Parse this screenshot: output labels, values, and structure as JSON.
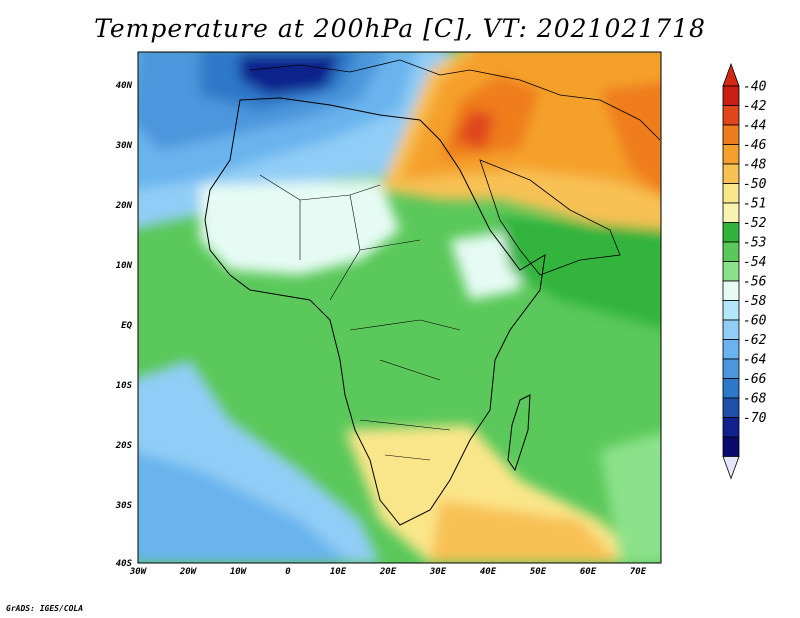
{
  "title": "Temperature at 200hPa [C], VT: 2021021718",
  "credit": "GrADS: IGES/COLA",
  "map": {
    "region": "Africa",
    "lon_ticks": [
      "30W",
      "20W",
      "10W",
      "0",
      "10E",
      "20E",
      "30E",
      "40E",
      "50E",
      "60E",
      "70E"
    ],
    "lat_ticks": [
      "40N",
      "30N",
      "20N",
      "10N",
      "EQ",
      "10S",
      "20S",
      "30S",
      "40S"
    ]
  },
  "colorbar": {
    "labels": [
      "-40",
      "-42",
      "-44",
      "-46",
      "-48",
      "-50",
      "-51",
      "-52",
      "-53",
      "-54",
      "-56",
      "-58",
      "-60",
      "-62",
      "-64",
      "-66",
      "-68",
      "-70"
    ],
    "colors": [
      "#c81e14",
      "#e0461c",
      "#ef7d1e",
      "#f5a02c",
      "#f8c154",
      "#fae68a",
      "#f7f4b2",
      "#32b43c",
      "#5ac85a",
      "#8ce28a",
      "#e6fbf4",
      "#b4e6fa",
      "#91cdf6",
      "#69b4ee",
      "#4b96dc",
      "#2d78c8",
      "#1e50aa",
      "#10208c",
      "#0a0a6e"
    ],
    "top_color": "#d22814",
    "bottom_color": "#e6e6fa"
  }
}
